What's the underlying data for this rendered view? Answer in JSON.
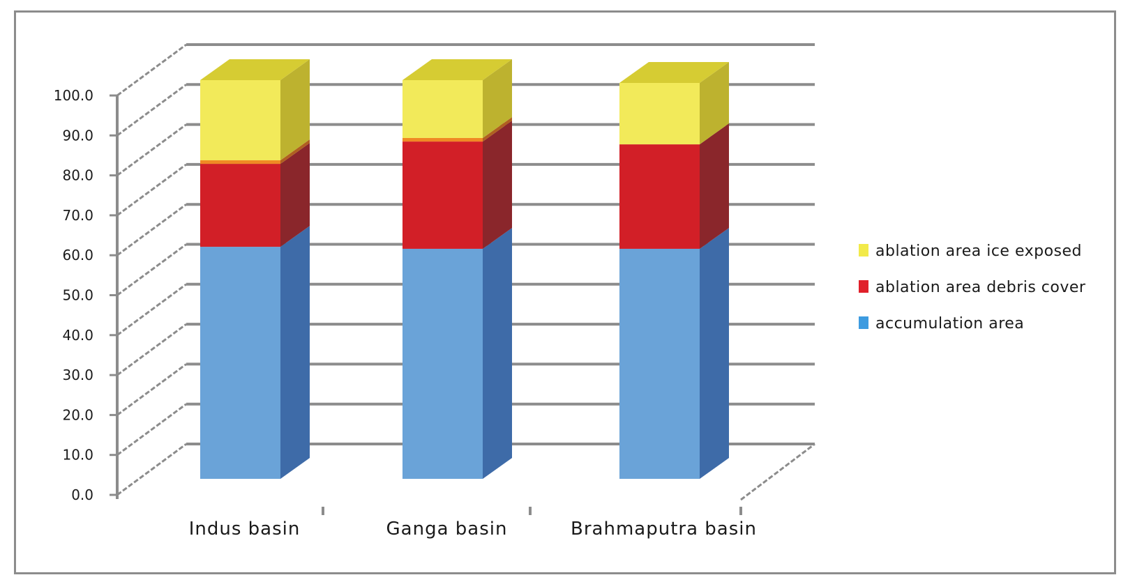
{
  "chart_data": {
    "type": "bar",
    "subtype": "3d-stacked-column",
    "title": "",
    "xlabel": "",
    "ylabel": "",
    "ylim": [
      0,
      100
    ],
    "yticks": [
      "0.0",
      "10.0",
      "20.0",
      "30.0",
      "40.0",
      "50.0",
      "60.0",
      "70.0",
      "80.0",
      "90.0",
      "100.0"
    ],
    "grid": true,
    "legend_position": "right",
    "categories": [
      "Indus basin",
      "Ganga basin",
      "Brahmaputra basin"
    ],
    "series": [
      {
        "name": "accumulation area",
        "color": "#6aa3d8",
        "side_color": "#3e6ba8",
        "values": [
          58.2,
          57.7,
          57.7
        ]
      },
      {
        "name": "ablation area debris cover",
        "color": "#d21f27",
        "side_color": "#8a262b",
        "values": [
          20.8,
          26.9,
          26.2
        ]
      },
      {
        "name": "",
        "color": "#f08a24",
        "side_color": "#b06020",
        "values": [
          0.9,
          0.9,
          0.0
        ]
      },
      {
        "name": "ablation area ice exposed",
        "color": "#f2ea5a",
        "side_color": "#bdb22f",
        "top_color": "#d6cc33",
        "values": [
          20.1,
          14.5,
          15.4
        ]
      }
    ],
    "legend": [
      {
        "label": "ablation area ice exposed",
        "color": "#f2ea4a"
      },
      {
        "label": "ablation area debris cover",
        "color": "#e0202a"
      },
      {
        "label": "accumulation area",
        "color": "#3d9be0"
      }
    ]
  },
  "style": {
    "grid_color": "#8c8c8c",
    "frame_color": "#8c8c8c"
  }
}
